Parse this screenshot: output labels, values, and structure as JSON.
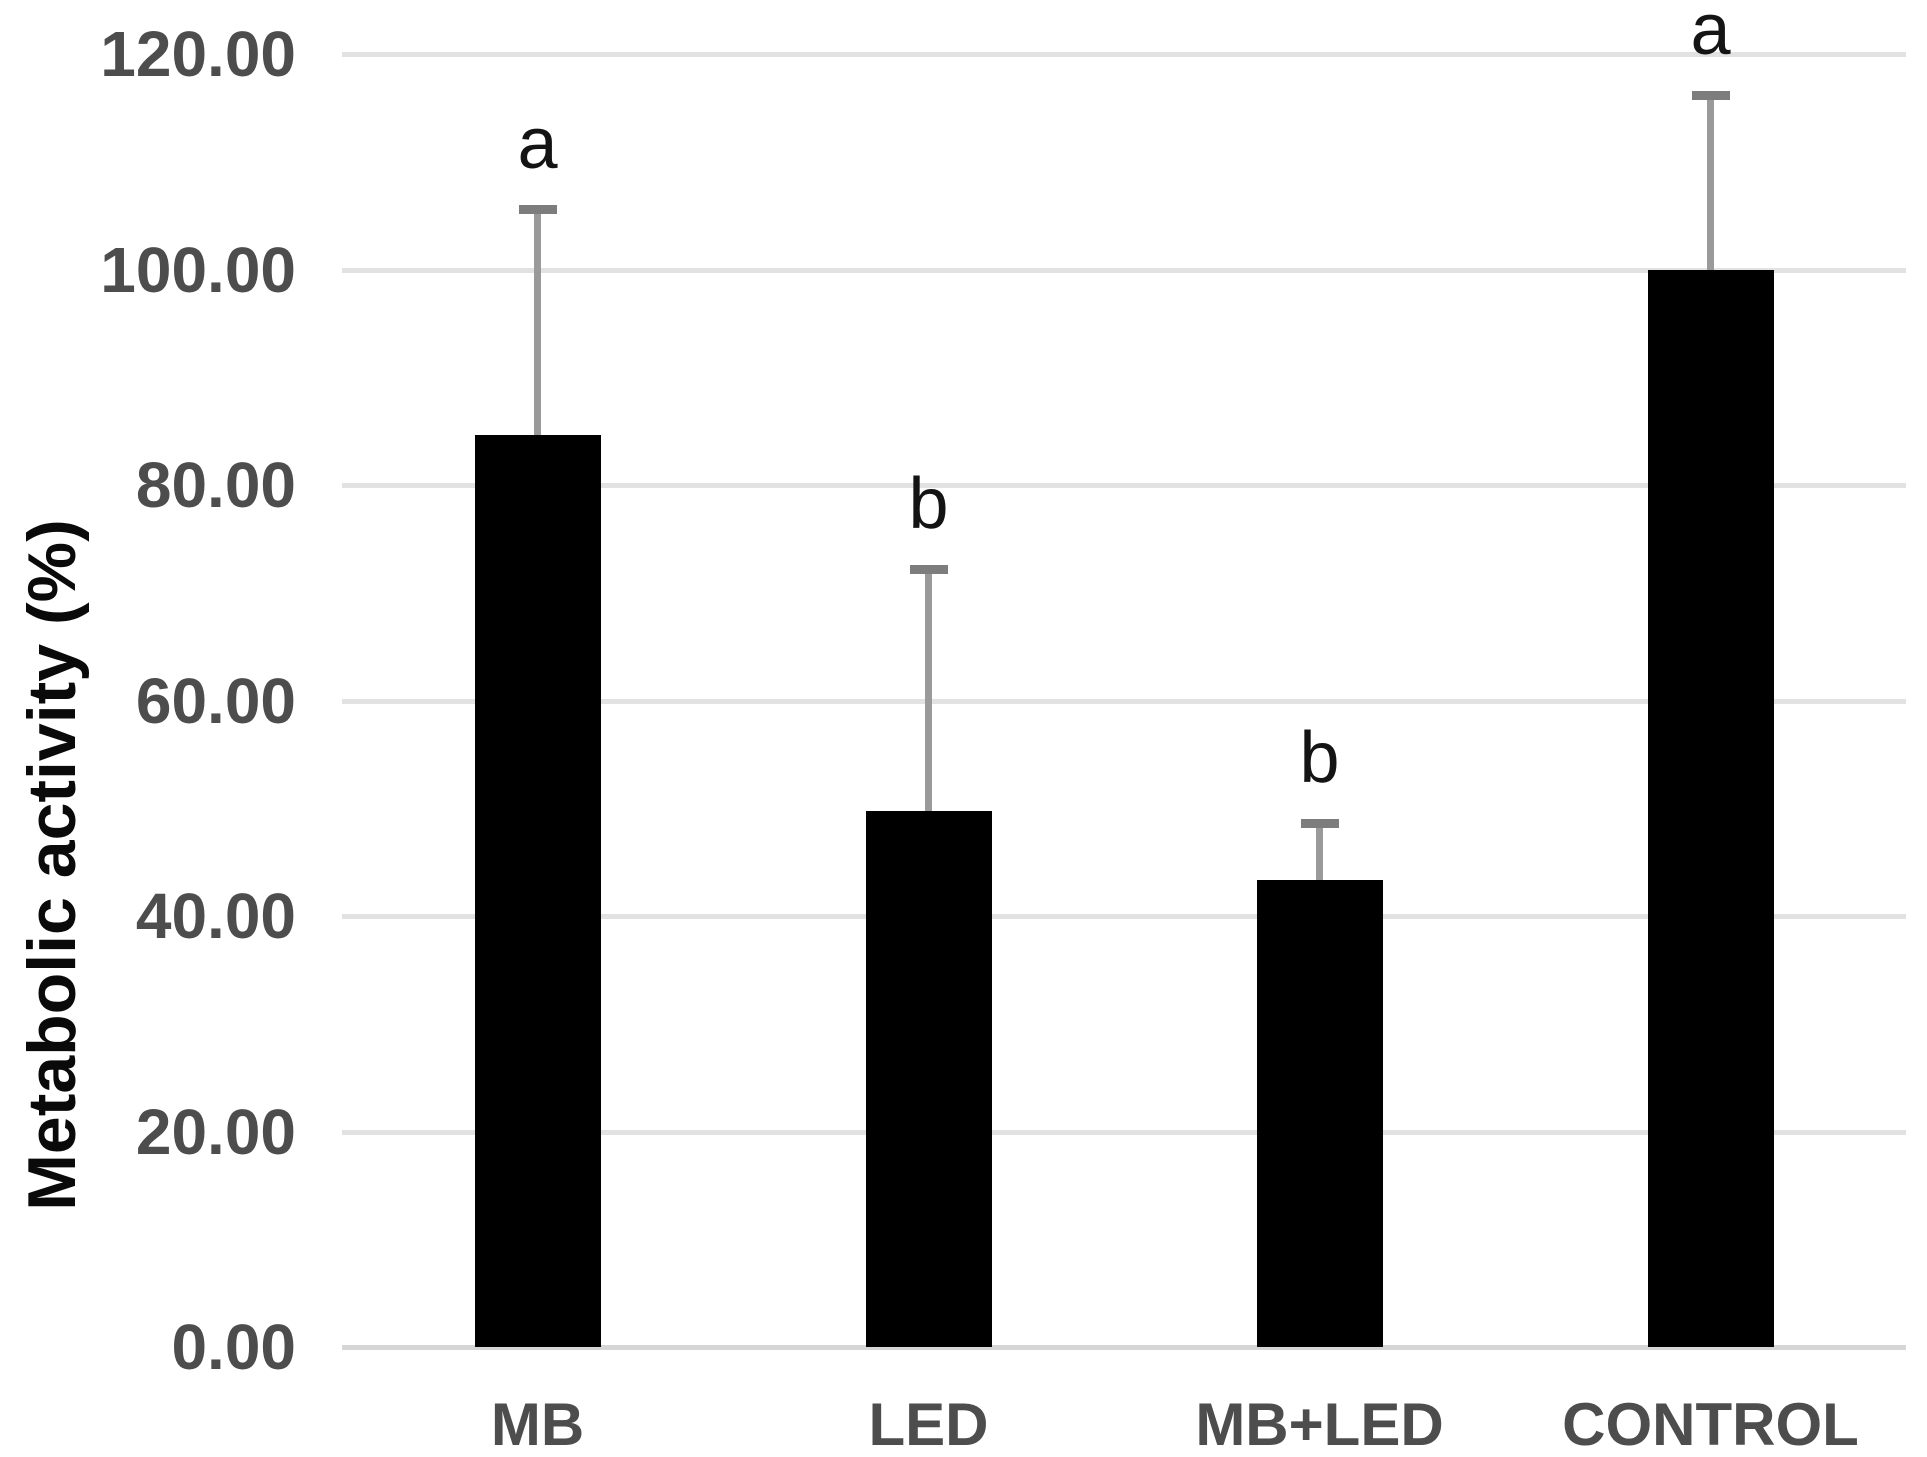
{
  "figure": {
    "background_color": "#ffffff"
  },
  "chart_data": {
    "type": "bar",
    "title": "",
    "ylabel": "Metabolic activity (%)",
    "categories": [
      "MB",
      "LED",
      "MB+LED",
      "CONTROL"
    ],
    "values": [
      84.6,
      49.7,
      43.3,
      100.0
    ],
    "error_plus": [
      21.4,
      22.9,
      5.7,
      16.6
    ],
    "significance_letters": [
      "a",
      "b",
      "b",
      "a"
    ],
    "ylim": [
      0,
      120
    ],
    "ytick_step": 20,
    "yticks": [
      {
        "value": 0,
        "label": "0.00"
      },
      {
        "value": 20,
        "label": "20.00"
      },
      {
        "value": 40,
        "label": "40.00"
      },
      {
        "value": 60,
        "label": "60.00"
      },
      {
        "value": 80,
        "label": "80.00"
      },
      {
        "value": 100,
        "label": "100.00"
      },
      {
        "value": 120,
        "label": "120.00"
      }
    ],
    "grid": "horizontal",
    "legend": "none",
    "colors": {
      "bar": "#000000",
      "error_bar_stem": "#9a9a9a",
      "error_bar_cap": "#7d7d7d",
      "gridline": "#e2e2e2",
      "tick_label": "#4d4d4d",
      "category_label": "#4d4d4d",
      "axis_title": "#0a0a0a",
      "significance_letter": "#141414"
    }
  }
}
